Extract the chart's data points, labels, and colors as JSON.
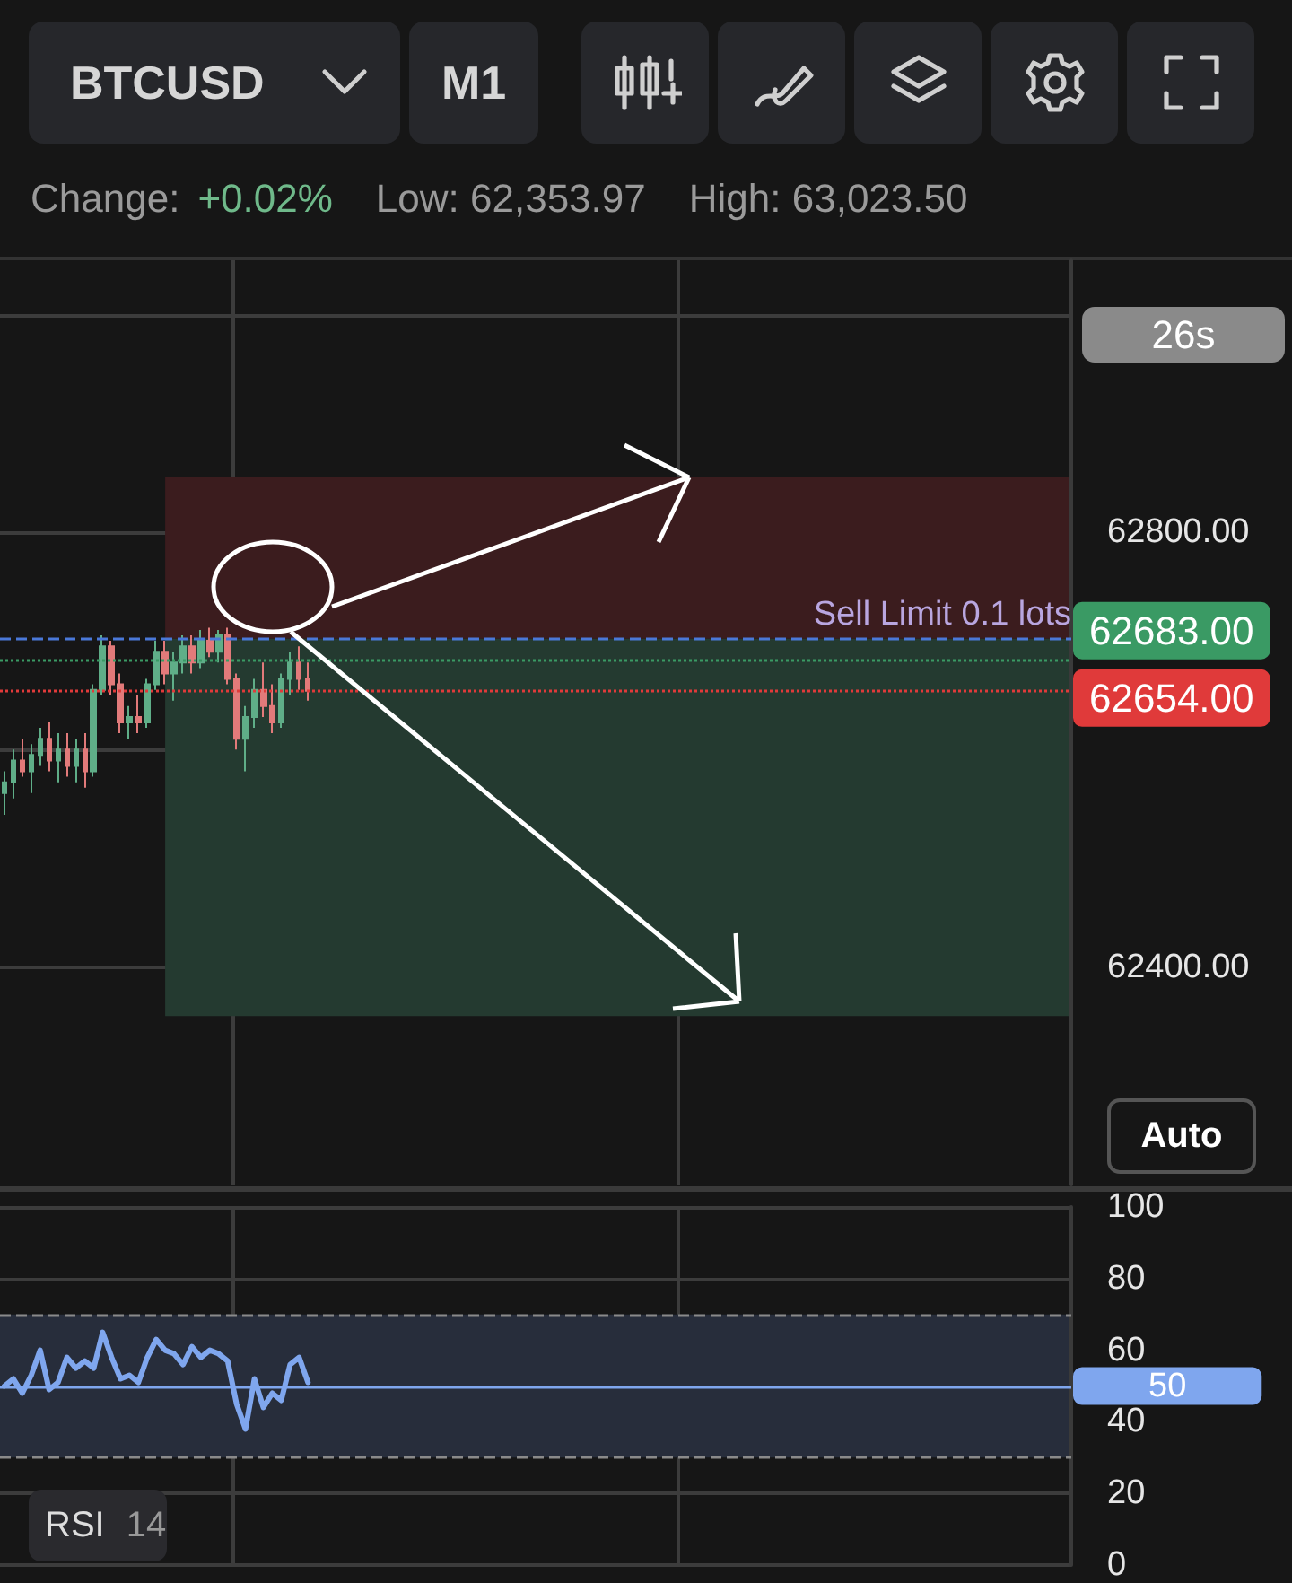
{
  "chart_data": [
    {
      "type": "candlestick",
      "title": "BTCUSD",
      "subtitle": "M1",
      "annotations": [
        "Change:",
        "+0.02%",
        "Low: 62,353.97",
        "High: 63,023.50",
        "26s",
        "Auto"
      ],
      "categories": [
        null,
        null,
        null,
        null,
        null,
        null,
        null,
        null,
        null,
        null,
        null,
        null,
        null,
        null,
        null,
        null,
        null,
        null,
        null,
        null,
        null,
        null,
        null,
        null,
        null,
        null,
        null,
        null,
        null,
        null,
        null,
        null,
        null,
        null,
        null,
        null,
        null,
        null,
        null,
        null,
        null,
        null,
        null,
        null,
        null,
        null,
        null,
        null,
        null,
        null,
        null,
        null,
        null,
        null,
        null,
        null,
        null,
        null,
        null,
        null,
        null,
        null,
        null,
        null,
        null,
        null,
        null,
        null,
        null,
        null,
        null,
        null,
        null,
        null,
        null,
        null,
        null,
        null,
        null,
        null,
        null,
        null,
        null,
        null,
        null,
        null,
        null,
        null,
        null,
        null,
        null,
        null,
        null,
        null,
        null,
        null,
        null,
        null,
        null,
        null,
        null,
        null,
        null,
        null,
        null,
        null,
        null,
        null,
        null,
        null,
        null,
        null,
        null,
        null,
        null,
        null,
        null,
        null,
        null,
        null
      ],
      "ohlc": [
        [
          62560,
          62580,
          62540,
          62570
        ],
        [
          62570,
          62600,
          62555,
          62590
        ],
        [
          62590,
          62610,
          62575,
          62580
        ],
        [
          62580,
          62605,
          62560,
          62595
        ],
        [
          62595,
          62620,
          62585,
          62610
        ],
        [
          62610,
          62625,
          62580,
          62590
        ],
        [
          62590,
          62615,
          62570,
          62600
        ],
        [
          62600,
          62615,
          62575,
          62585
        ],
        [
          62585,
          62610,
          62570,
          62600
        ],
        [
          62600,
          62615,
          62565,
          62580
        ],
        [
          62580,
          62660,
          62575,
          62655
        ],
        [
          62655,
          62705,
          62650,
          62695
        ],
        [
          62695,
          62700,
          62650,
          62660
        ],
        [
          62660,
          62670,
          62615,
          62625
        ],
        [
          62625,
          62640,
          62610,
          62630
        ],
        [
          62630,
          62650,
          62615,
          62625
        ],
        [
          62625,
          62665,
          62620,
          62660
        ],
        [
          62660,
          62700,
          62655,
          62690
        ],
        [
          62690,
          62700,
          62660,
          62670
        ],
        [
          62670,
          62690,
          62645,
          62680
        ],
        [
          62680,
          62705,
          62670,
          62695
        ],
        [
          62695,
          62705,
          62670,
          62680
        ],
        [
          62680,
          62710,
          62675,
          62700
        ],
        [
          62700,
          62712,
          62685,
          62690
        ],
        [
          62690,
          62710,
          62680,
          62705
        ],
        [
          62705,
          62712,
          62660,
          62665
        ],
        [
          62665,
          62670,
          62600,
          62610
        ],
        [
          62610,
          62640,
          62580,
          62630
        ],
        [
          62630,
          62665,
          62620,
          62655
        ],
        [
          62655,
          62680,
          62630,
          62640
        ],
        [
          62640,
          62660,
          62615,
          62625
        ],
        [
          62625,
          62670,
          62620,
          62665
        ],
        [
          62665,
          62690,
          62650,
          62680
        ],
        [
          62680,
          62695,
          62655,
          62665
        ],
        [
          62665,
          62680,
          62645,
          62654
        ],
        null,
        null,
        null,
        null,
        null,
        null,
        null,
        null,
        null,
        null,
        null,
        null,
        null,
        null,
        null,
        null,
        null,
        null,
        null,
        null,
        null,
        null,
        null,
        null,
        null,
        null,
        null,
        null,
        null,
        null,
        null,
        null,
        null,
        null,
        null,
        null,
        null,
        null,
        null,
        null,
        null,
        null,
        null,
        null,
        null,
        null,
        null,
        null,
        null,
        null,
        null,
        null,
        null,
        null,
        null,
        null,
        null,
        null,
        null,
        null,
        null,
        null,
        null,
        null,
        null,
        null,
        null,
        null,
        null,
        null,
        null,
        null,
        null,
        null,
        null,
        null,
        null,
        null,
        null,
        null,
        null,
        null,
        null,
        null,
        null
      ],
      "ylim": [
        62200,
        63050
      ],
      "yticks": [
        {
          "value": 62400,
          "label": "62400.00"
        },
        {
          "value": 62600,
          "label": null
        },
        {
          "value": 62800,
          "label": "62800.00"
        },
        {
          "value": 63000,
          "label": null
        }
      ],
      "grid": true,
      "ref_lines": [
        {
          "axis": "y",
          "value": 62702,
          "label": "Sell Limit 0.1 lots",
          "color": "#4a78d8",
          "line_style": "dashed"
        },
        {
          "axis": "y",
          "value": 62683,
          "label": "62683.00",
          "color": "#3a9a64",
          "line_style": "dotted"
        },
        {
          "axis": "y",
          "value": 62654,
          "label": "62654.00",
          "color": "#e03a3a",
          "line_style": "dotted"
        }
      ],
      "bands": [
        {
          "axis": "y",
          "from": 62702,
          "to": 62851,
          "color": "#3b1c1e"
        },
        {
          "axis": "y",
          "from": 62355,
          "to": 62702,
          "color": "#243a30"
        }
      ]
    },
    {
      "type": "line",
      "annotations": [
        "RSI",
        "14"
      ],
      "categories": [
        null,
        null,
        null,
        null,
        null,
        null,
        null,
        null,
        null,
        null,
        null,
        null,
        null,
        null,
        null,
        null,
        null,
        null,
        null,
        null,
        null,
        null,
        null,
        null,
        null,
        null,
        null,
        null,
        null,
        null,
        null,
        null,
        null,
        null,
        null,
        null,
        null,
        null,
        null,
        null,
        null,
        null,
        null,
        null,
        null,
        null,
        null,
        null,
        null,
        null,
        null,
        null,
        null,
        null,
        null,
        null,
        null,
        null,
        null,
        null,
        null,
        null,
        null,
        null,
        null,
        null,
        null,
        null,
        null,
        null,
        null,
        null,
        null,
        null,
        null,
        null,
        null,
        null,
        null,
        null,
        null,
        null,
        null,
        null,
        null,
        null,
        null,
        null,
        null,
        null,
        null,
        null,
        null,
        null,
        null,
        null,
        null,
        null,
        null,
        null,
        null,
        null,
        null,
        null,
        null,
        null,
        null,
        null,
        null,
        null,
        null,
        null,
        null,
        null,
        null,
        null,
        null,
        null,
        null,
        null
      ],
      "series": [
        {
          "color": "#7fa6ee",
          "values": [
            50,
            52,
            48,
            53,
            60,
            49,
            51,
            58,
            55,
            57,
            55,
            65,
            58,
            52,
            53,
            51,
            58,
            63,
            60,
            59,
            56,
            61,
            58,
            60,
            59,
            57,
            45,
            38,
            52,
            44,
            48,
            46,
            56,
            58,
            51,
            null,
            null,
            null,
            null,
            null,
            null,
            null,
            null,
            null,
            null,
            null,
            null,
            null,
            null,
            null,
            null,
            null,
            null,
            null,
            null,
            null,
            null,
            null,
            null,
            null,
            null,
            null,
            null,
            null,
            null,
            null,
            null,
            null,
            null,
            null,
            null,
            null,
            null,
            null,
            null,
            null,
            null,
            null,
            null,
            null,
            null,
            null,
            null,
            null,
            null,
            null,
            null,
            null,
            null,
            null,
            null,
            null,
            null,
            null,
            null,
            null,
            null,
            null,
            null,
            null,
            null,
            null,
            null,
            null,
            null,
            null,
            null,
            null,
            null,
            null,
            null,
            null,
            null,
            null,
            null,
            null,
            null,
            null,
            null,
            null
          ]
        }
      ],
      "ylim": [
        0,
        100
      ],
      "yticks": [
        0,
        20,
        40,
        60,
        80,
        100
      ],
      "grid": true,
      "marker": "none",
      "line_style": "solid",
      "ref_lines": [
        {
          "axis": "y",
          "value": 70,
          "color": "#8a8a8a",
          "line_style": "dashed"
        },
        {
          "axis": "y",
          "value": 30,
          "color": "#8a8a8a",
          "line_style": "dashed"
        },
        {
          "axis": "y",
          "value": 50,
          "label": "50",
          "color": "#7fa6ee",
          "line_style": "solid"
        }
      ],
      "bands": [
        {
          "axis": "y",
          "from": 30,
          "to": 70,
          "color": "#272d3b"
        }
      ]
    }
  ]
}
